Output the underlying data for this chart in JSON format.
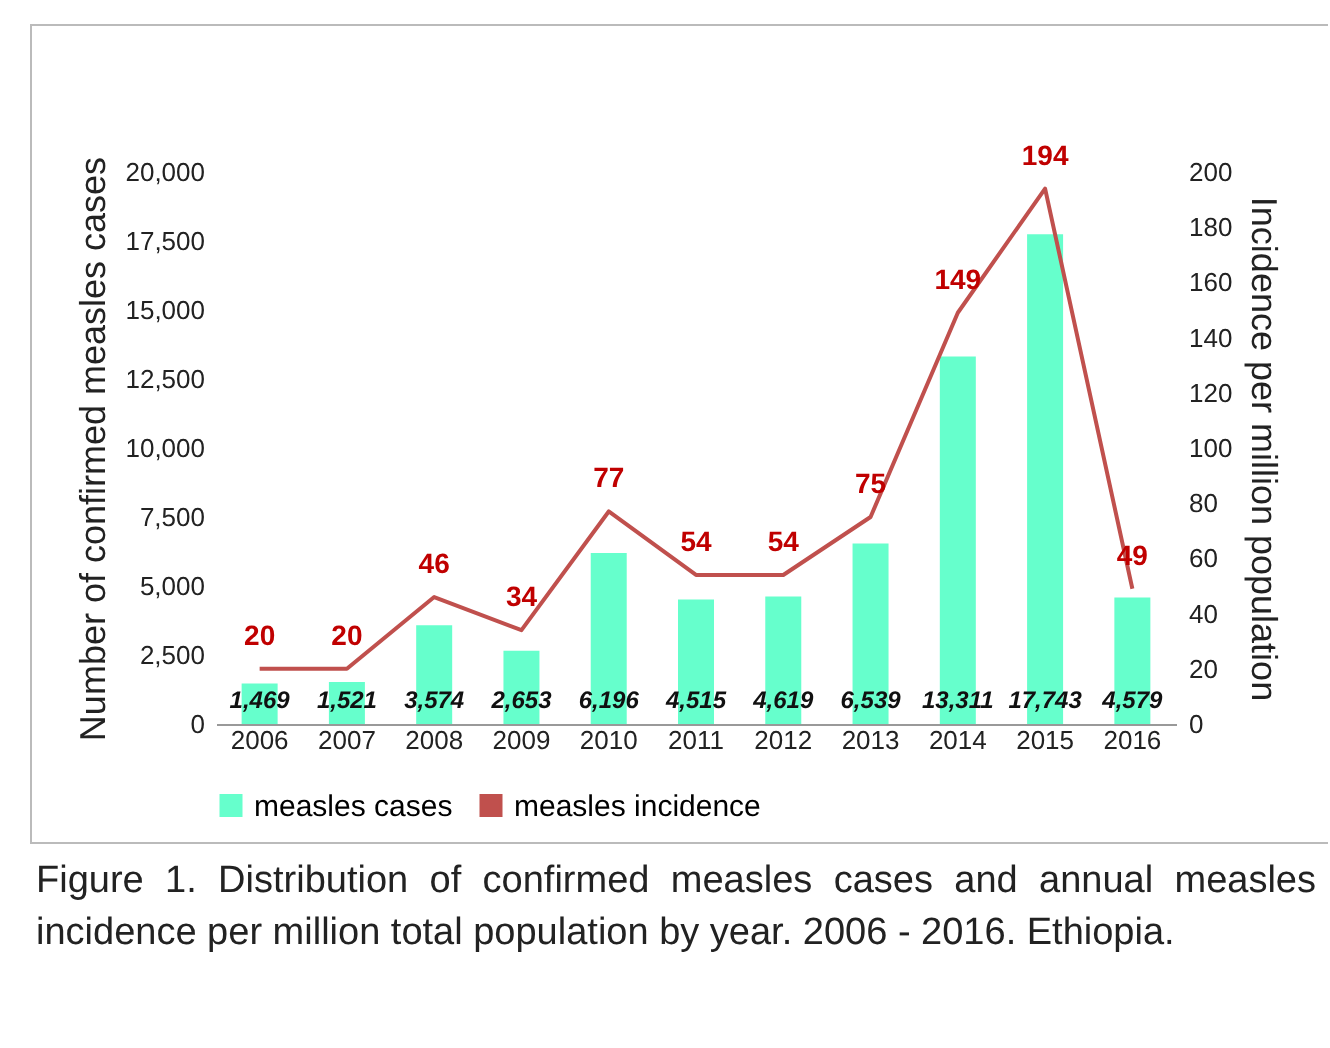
{
  "chart_data": {
    "type": "bar",
    "categories": [
      "2006",
      "2007",
      "2008",
      "2009",
      "2010",
      "2011",
      "2012",
      "2013",
      "2014",
      "2015",
      "2016"
    ],
    "ylabel": "Number of confirmed measles cases",
    "y2label": "Incidence per million population",
    "series": [
      {
        "name": "measles cases",
        "color": "#66ffcc",
        "values": [
          1469,
          1521,
          3574,
          2653,
          6196,
          4515,
          4619,
          6539,
          13311,
          17743,
          4579
        ],
        "value_labels": [
          "1,469",
          "1,521",
          "3,574",
          "2,653",
          "6,196",
          "4,515",
          "4,619",
          "6,539",
          "13,311",
          "17,743",
          "4,579"
        ]
      },
      {
        "name": "measles incidence",
        "type": "line",
        "axis": "y2",
        "color": "#c0504d",
        "values": [
          20,
          20,
          46,
          34,
          77,
          54,
          54,
          75,
          149,
          194,
          49
        ]
      }
    ],
    "ylim": [
      0,
      20000
    ],
    "yticks": [
      0,
      {
        "value": 2500,
        "label": "2,500"
      },
      {
        "value": 5000,
        "label": "5,000"
      },
      {
        "value": 7500,
        "label": "7,500"
      },
      {
        "value": 10000,
        "label": "10,000"
      },
      {
        "value": 12500,
        "label": "12,500"
      },
      {
        "value": 15000,
        "label": "15,000"
      },
      {
        "value": 17500,
        "label": "17,500"
      },
      {
        "value": 20000,
        "label": "20,000"
      }
    ],
    "y2lim": [
      0,
      200
    ],
    "y2ticks": [
      0,
      20,
      40,
      60,
      80,
      100,
      120,
      140,
      160,
      180,
      200
    ],
    "data_labels": true,
    "legend": "bottom",
    "grid": false,
    "annotations": [
      "Figure 1. Distribution of confirmed measles cases and annual measles incidence per million total population by year. 2006 - 2016. Ethiopia."
    ]
  }
}
